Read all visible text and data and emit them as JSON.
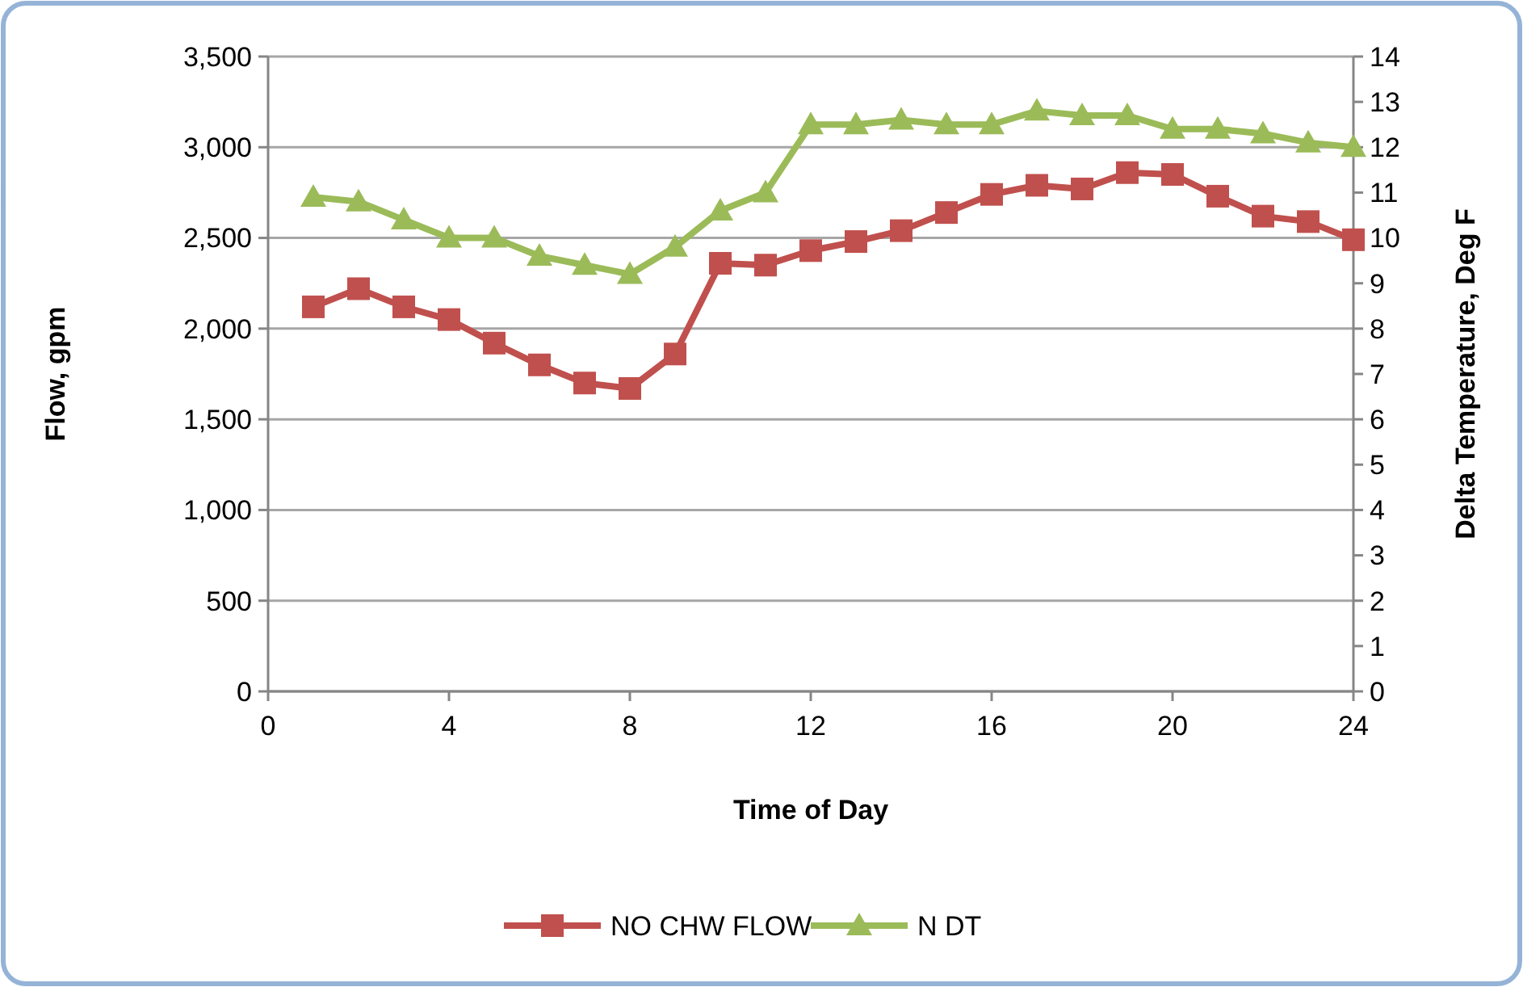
{
  "chart_data": {
    "type": "line",
    "xlabel": "Time of Day",
    "ylabel": "Flow, gpm",
    "y2label": "Delta Temperature, Deg F",
    "x": [
      1,
      2,
      3,
      4,
      5,
      6,
      7,
      8,
      9,
      10,
      11,
      12,
      13,
      14,
      15,
      16,
      17,
      18,
      19,
      20,
      21,
      22,
      23,
      24
    ],
    "xlim": [
      0,
      24
    ],
    "xticks": [
      0,
      4,
      8,
      12,
      16,
      20,
      24
    ],
    "ylim": [
      0,
      3500
    ],
    "yticks": [
      {
        "value": 0,
        "label": "0"
      },
      {
        "value": 500,
        "label": "500"
      },
      {
        "value": 1000,
        "label": "1,000"
      },
      {
        "value": 1500,
        "label": "1,500"
      },
      {
        "value": 2000,
        "label": "2,000"
      },
      {
        "value": 2500,
        "label": "2,500"
      },
      {
        "value": 3000,
        "label": "3,000"
      },
      {
        "value": 3500,
        "label": "3,500"
      }
    ],
    "y2lim": [
      0,
      14
    ],
    "y2ticks": [
      0,
      1,
      2,
      3,
      4,
      5,
      6,
      7,
      8,
      9,
      10,
      11,
      12,
      13,
      14
    ],
    "grid": "y",
    "legend": "bottom",
    "series": [
      {
        "name": "NO CHW FLOW",
        "color": "#c0504d",
        "marker": "square",
        "values": [
          2120,
          2220,
          2120,
          2050,
          1920,
          1800,
          1700,
          1670,
          1860,
          2360,
          2350,
          2430,
          2480,
          2540,
          2640,
          2740,
          2790,
          2770,
          2860,
          2850,
          2730,
          2620,
          2590,
          2490
        ]
      },
      {
        "name": "N DT",
        "color": "#9bbb59",
        "marker": "triangle",
        "axis": "y2",
        "values": [
          10.9,
          10.8,
          10.4,
          10.0,
          10.0,
          9.6,
          9.4,
          9.2,
          9.8,
          10.6,
          11.0,
          12.5,
          12.5,
          12.6,
          12.5,
          12.5,
          12.8,
          12.7,
          12.7,
          12.4,
          12.4,
          12.3,
          12.1,
          12.0
        ]
      }
    ]
  }
}
